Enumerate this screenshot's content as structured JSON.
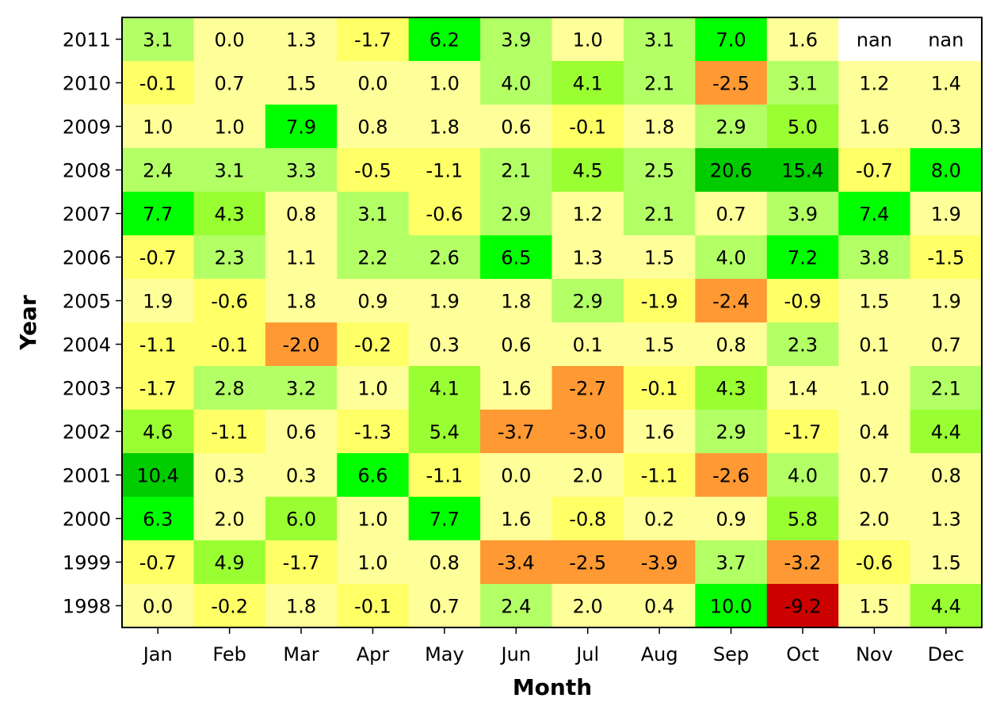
{
  "chart_data": {
    "type": "heatmap",
    "title": "",
    "xlabel": "Month",
    "ylabel": "Year",
    "months": [
      "Jan",
      "Feb",
      "Mar",
      "Apr",
      "May",
      "Jun",
      "Jul",
      "Aug",
      "Sep",
      "Oct",
      "Nov",
      "Dec"
    ],
    "years": [
      "2011",
      "2010",
      "2009",
      "2008",
      "2007",
      "2006",
      "2005",
      "2004",
      "2003",
      "2002",
      "2001",
      "2000",
      "1999",
      "1998"
    ],
    "values": [
      [
        3.1,
        0.0,
        1.3,
        -1.7,
        6.2,
        3.9,
        1.0,
        3.1,
        7.0,
        1.6,
        null,
        null
      ],
      [
        -0.1,
        0.7,
        1.5,
        0.0,
        1.0,
        4.0,
        4.1,
        2.1,
        -2.5,
        3.1,
        1.2,
        1.4
      ],
      [
        1.0,
        1.0,
        7.9,
        0.8,
        1.8,
        0.6,
        -0.1,
        1.8,
        2.9,
        5.0,
        1.6,
        0.3
      ],
      [
        2.4,
        3.1,
        3.3,
        -0.5,
        -1.1,
        2.1,
        4.5,
        2.5,
        20.6,
        15.4,
        -0.7,
        8.0
      ],
      [
        7.7,
        4.3,
        0.8,
        3.1,
        -0.6,
        2.9,
        1.2,
        2.1,
        0.7,
        3.9,
        7.4,
        1.9
      ],
      [
        -0.7,
        2.3,
        1.1,
        2.2,
        2.6,
        6.5,
        1.3,
        1.5,
        4.0,
        7.2,
        3.8,
        -1.5
      ],
      [
        1.9,
        -0.6,
        1.8,
        0.9,
        1.9,
        1.8,
        2.9,
        -1.9,
        -2.4,
        -0.9,
        1.5,
        1.9
      ],
      [
        -1.1,
        -0.1,
        -2.0,
        -0.2,
        0.3,
        0.6,
        0.1,
        1.5,
        0.8,
        2.3,
        0.1,
        0.7
      ],
      [
        -1.7,
        2.8,
        3.2,
        1.0,
        4.1,
        1.6,
        -2.7,
        -0.1,
        4.3,
        1.4,
        1.0,
        2.1
      ],
      [
        4.6,
        -1.1,
        0.6,
        -1.3,
        5.4,
        -3.7,
        -3.0,
        1.6,
        2.9,
        -1.7,
        0.4,
        4.4
      ],
      [
        10.4,
        0.3,
        0.3,
        6.6,
        -1.1,
        0.0,
        2.0,
        -1.1,
        -2.6,
        4.0,
        0.7,
        0.8
      ],
      [
        6.3,
        2.0,
        6.0,
        1.0,
        7.7,
        1.6,
        -0.8,
        0.2,
        0.9,
        5.8,
        2.0,
        1.3
      ],
      [
        -0.7,
        4.9,
        -1.7,
        1.0,
        0.8,
        -3.4,
        -2.5,
        -3.9,
        3.7,
        -3.2,
        -0.6,
        1.5
      ],
      [
        0.0,
        -0.2,
        1.8,
        -0.1,
        0.7,
        2.4,
        2.0,
        0.4,
        10.0,
        -9.2,
        1.5,
        4.4
      ]
    ],
    "missing_label": "nan",
    "grid": false,
    "legend": "none",
    "color_scale": [
      {
        "max": -5.0,
        "color": "#cc0000"
      },
      {
        "max": -2.0,
        "color": "#ff9933"
      },
      {
        "max": -0.05,
        "color": "#ffff66"
      },
      {
        "max": 2.0,
        "color": "#ffff99"
      },
      {
        "max": 4.0,
        "color": "#b3ff66"
      },
      {
        "max": 6.0,
        "color": "#99ff33"
      },
      {
        "max": 10.0,
        "color": "#00ff00"
      },
      {
        "max": 999,
        "color": "#00cc00"
      }
    ],
    "missing_color": "#ffffff"
  }
}
